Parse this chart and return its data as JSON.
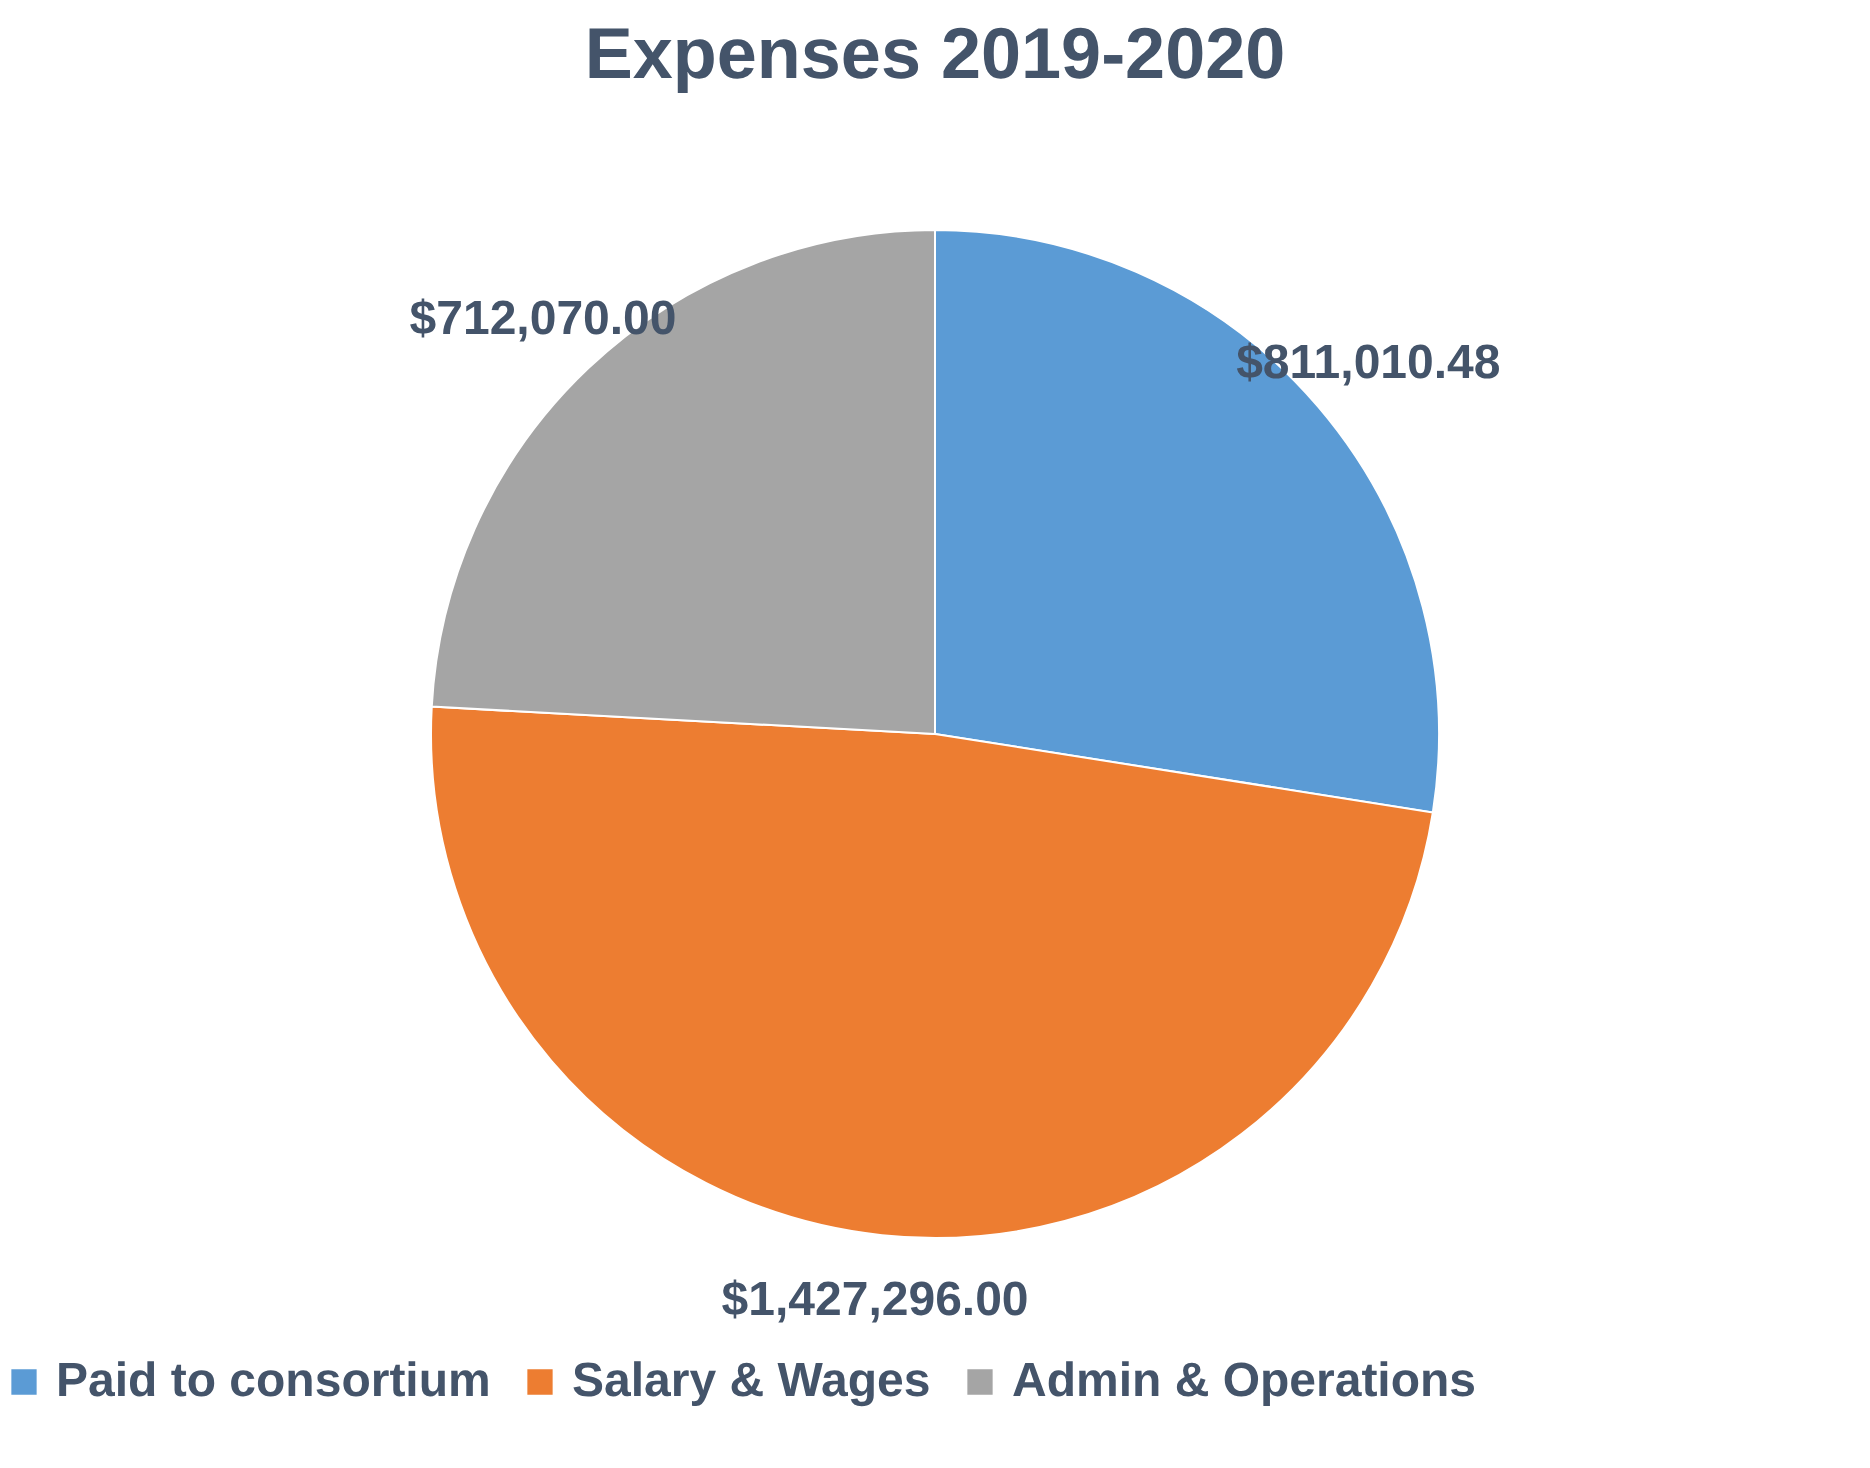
{
  "chart_data": {
    "type": "pie",
    "title": "Expenses 2019-2020",
    "categories": [
      "Paid to consortium",
      "Salary & Wages",
      "Admin & Operations"
    ],
    "values": [
      811010.48,
      1427296.0,
      712070.0
    ],
    "colors": [
      "#5b9bd5",
      "#ed7d31",
      "#a5a5a5"
    ],
    "value_labels": [
      "$811,010.48",
      "$1,427,296.00",
      "$712,070.00"
    ],
    "legend": "bottom"
  }
}
